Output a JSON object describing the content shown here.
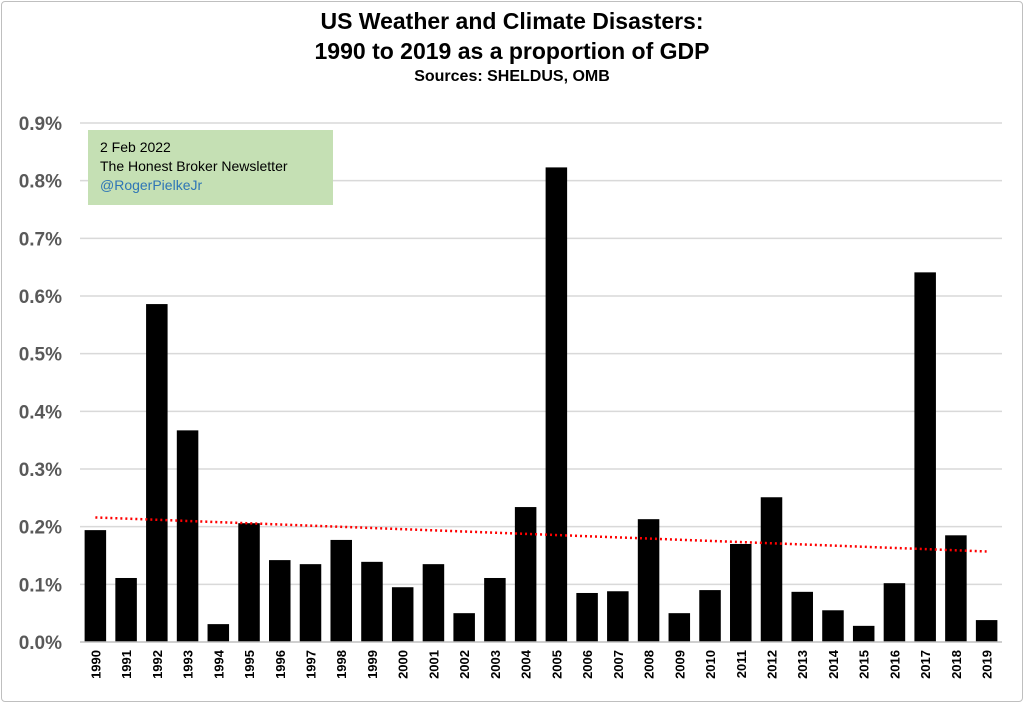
{
  "chart_data": {
    "type": "bar",
    "title": "US Weather and Climate Disasters:",
    "title_line2": "1990 to 2019 as a proportion of GDP",
    "subtitle": "Sources: SHELDUS, OMB",
    "categories": [
      "1990",
      "1991",
      "1992",
      "1993",
      "1994",
      "1995",
      "1996",
      "1997",
      "1998",
      "1999",
      "2000",
      "2001",
      "2002",
      "2003",
      "2004",
      "2005",
      "2006",
      "2007",
      "2008",
      "2009",
      "2010",
      "2011",
      "2012",
      "2013",
      "2014",
      "2015",
      "2016",
      "2017",
      "2018",
      "2019"
    ],
    "values": [
      0.194,
      0.111,
      0.586,
      0.367,
      0.031,
      0.206,
      0.142,
      0.135,
      0.177,
      0.139,
      0.095,
      0.135,
      0.05,
      0.111,
      0.234,
      0.823,
      0.085,
      0.088,
      0.213,
      0.05,
      0.09,
      0.17,
      0.251,
      0.087,
      0.055,
      0.028,
      0.102,
      0.641,
      0.185,
      0.038
    ],
    "unit": "%",
    "ylim": [
      0,
      0.9
    ],
    "yticks": [
      "0.0%",
      "0.1%",
      "0.2%",
      "0.3%",
      "0.4%",
      "0.5%",
      "0.6%",
      "0.7%",
      "0.8%",
      "0.9%"
    ],
    "grid": true,
    "bar_color": "#000000",
    "trendline": {
      "type": "linear",
      "start": 0.216,
      "end": 0.157,
      "color": "#ff0000",
      "style": "dotted"
    }
  },
  "annotation": {
    "date": "2 Feb 2022",
    "source": "The Honest Broker Newsletter",
    "handle": "@RogerPielkeJr",
    "background": "#c5e0b4",
    "handle_color": "#2e75b6"
  }
}
